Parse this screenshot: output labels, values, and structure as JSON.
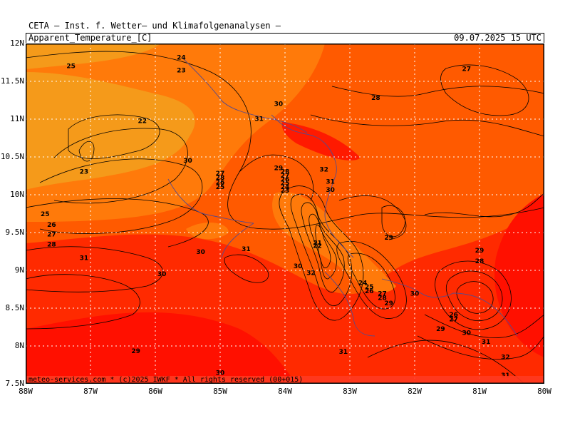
{
  "header": {
    "title": "CETA — Inst. f. Wetter— und Klimafolgenanalysen —",
    "variable": "Apparent_Temperature_[C]",
    "datetime": "09.07.2025 15 UTC"
  },
  "axes": {
    "lat_labels": [
      "12N",
      "11.5N",
      "11N",
      "10.5N",
      "10N",
      "9.5N",
      "9N",
      "8.5N",
      "8N",
      "7.5N"
    ],
    "lon_labels": [
      "88W",
      "87W",
      "86W",
      "85W",
      "84W",
      "83W",
      "82W",
      "81W",
      "80W"
    ]
  },
  "footer": "meteo-services.com * (c)2025 IWKF * All rights reserved (00+015)",
  "colors": {
    "zone_light": "#f59a1a",
    "zone_mid": "#ff7a0a",
    "zone_orange_red": "#ff5a00",
    "zone_red": "#ff2a00",
    "zone_deep_red": "#ff1000",
    "grid": "#ffffff",
    "contour": "#000000",
    "coast": "#5a4a8a"
  },
  "contour_labels": [
    {
      "t": "25",
      "lon": -87.3,
      "lat": 11.7
    },
    {
      "t": "24",
      "lon": -85.6,
      "lat": 11.81
    },
    {
      "t": "23",
      "lon": -85.6,
      "lat": 11.64
    },
    {
      "t": "22",
      "lon": -86.2,
      "lat": 10.97
    },
    {
      "t": "23",
      "lon": -87.1,
      "lat": 10.3
    },
    {
      "t": "25",
      "lon": -87.7,
      "lat": 9.74
    },
    {
      "t": "26",
      "lon": -87.6,
      "lat": 9.6
    },
    {
      "t": "27",
      "lon": -87.6,
      "lat": 9.47
    },
    {
      "t": "28",
      "lon": -87.6,
      "lat": 9.34
    },
    {
      "t": "31",
      "lon": -87.1,
      "lat": 9.16
    },
    {
      "t": "30",
      "lon": -85.9,
      "lat": 8.95
    },
    {
      "t": "29",
      "lon": -86.3,
      "lat": 7.93
    },
    {
      "t": "30",
      "lon": -85.0,
      "lat": 7.64
    },
    {
      "t": "30",
      "lon": -85.3,
      "lat": 9.24
    },
    {
      "t": "31",
      "lon": -84.6,
      "lat": 9.28
    },
    {
      "t": "30",
      "lon": -85.5,
      "lat": 10.45
    },
    {
      "t": "27",
      "lon": -85.0,
      "lat": 10.28
    },
    {
      "t": "28",
      "lon": -85.0,
      "lat": 10.22
    },
    {
      "t": "26",
      "lon": -85.0,
      "lat": 10.16
    },
    {
      "t": "25",
      "lon": -85.0,
      "lat": 10.1
    },
    {
      "t": "31",
      "lon": -84.4,
      "lat": 11.0
    },
    {
      "t": "30",
      "lon": -84.1,
      "lat": 11.2
    },
    {
      "t": "29",
      "lon": -84.1,
      "lat": 10.35
    },
    {
      "t": "28",
      "lon": -84.0,
      "lat": 10.3
    },
    {
      "t": "27",
      "lon": -84.0,
      "lat": 10.25
    },
    {
      "t": "26",
      "lon": -84.0,
      "lat": 10.2
    },
    {
      "t": "25",
      "lon": -84.0,
      "lat": 10.15
    },
    {
      "t": "24",
      "lon": -84.0,
      "lat": 10.1
    },
    {
      "t": "23",
      "lon": -84.0,
      "lat": 10.05
    },
    {
      "t": "32",
      "lon": -83.4,
      "lat": 10.33
    },
    {
      "t": "31",
      "lon": -83.3,
      "lat": 10.17
    },
    {
      "t": "30",
      "lon": -83.3,
      "lat": 10.06
    },
    {
      "t": "29",
      "lon": -82.4,
      "lat": 9.43
    },
    {
      "t": "21",
      "lon": -83.5,
      "lat": 9.36
    },
    {
      "t": "22",
      "lon": -83.5,
      "lat": 9.32
    },
    {
      "t": "30",
      "lon": -83.8,
      "lat": 9.05
    },
    {
      "t": "32",
      "lon": -83.6,
      "lat": 8.96
    },
    {
      "t": "24",
      "lon": -82.8,
      "lat": 8.83
    },
    {
      "t": "25",
      "lon": -82.7,
      "lat": 8.78
    },
    {
      "t": "26",
      "lon": -82.7,
      "lat": 8.72
    },
    {
      "t": "27",
      "lon": -82.5,
      "lat": 8.69
    },
    {
      "t": "28",
      "lon": -82.5,
      "lat": 8.63
    },
    {
      "t": "29",
      "lon": -82.4,
      "lat": 8.56
    },
    {
      "t": "30",
      "lon": -82.0,
      "lat": 8.69
    },
    {
      "t": "31",
      "lon": -83.1,
      "lat": 7.92
    },
    {
      "t": "27",
      "lon": -81.2,
      "lat": 11.66
    },
    {
      "t": "28",
      "lon": -82.6,
      "lat": 11.28
    },
    {
      "t": "29",
      "lon": -81.0,
      "lat": 9.26
    },
    {
      "t": "28",
      "lon": -81.0,
      "lat": 9.12
    },
    {
      "t": "26",
      "lon": -81.4,
      "lat": 8.41
    },
    {
      "t": "27",
      "lon": -81.4,
      "lat": 8.35
    },
    {
      "t": "29",
      "lon": -81.6,
      "lat": 8.22
    },
    {
      "t": "30",
      "lon": -81.2,
      "lat": 8.17
    },
    {
      "t": "31",
      "lon": -80.9,
      "lat": 8.05
    },
    {
      "t": "32",
      "lon": -80.6,
      "lat": 7.85
    },
    {
      "t": "31",
      "lon": -80.6,
      "lat": 7.61
    }
  ]
}
